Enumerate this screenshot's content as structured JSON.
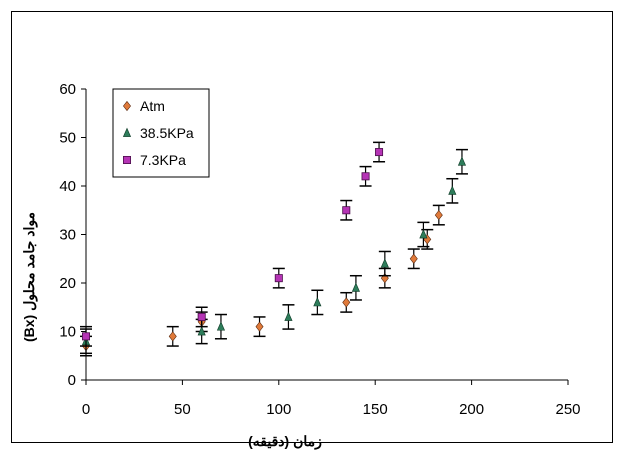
{
  "chart_data": {
    "type": "scatter",
    "xlabel": "زمان (دقیقه)",
    "ylabel": "مواد جامد محلول (Bx)",
    "xlim": [
      0,
      250
    ],
    "ylim": [
      0,
      60
    ],
    "xticks": [
      0,
      50,
      100,
      150,
      200,
      250
    ],
    "yticks": [
      0,
      10,
      20,
      30,
      40,
      50,
      60
    ],
    "grid": false,
    "legend_position": "top-left",
    "series": [
      {
        "name": "Atm",
        "marker": "diamond",
        "color": "#e07a3a",
        "x": [
          0,
          45,
          60,
          90,
          135,
          155,
          170,
          177,
          183
        ],
        "y": [
          7,
          9,
          12,
          11,
          16,
          21,
          25,
          29,
          34
        ],
        "err": [
          2,
          2,
          2,
          2,
          2,
          2,
          2,
          2,
          2
        ]
      },
      {
        "name": "38.5KPa",
        "marker": "triangle",
        "color": "#2e7d5b",
        "x": [
          0,
          60,
          70,
          105,
          120,
          140,
          155,
          175,
          190,
          195
        ],
        "y": [
          8,
          10,
          11,
          13,
          16,
          19,
          24,
          30,
          39,
          45
        ],
        "err": [
          2.5,
          2.5,
          2.5,
          2.5,
          2.5,
          2.5,
          2.5,
          2.5,
          2.5,
          2.5
        ]
      },
      {
        "name": "7.3KPa",
        "marker": "square",
        "color": "#b534b5",
        "x": [
          0,
          60,
          100,
          135,
          145,
          152
        ],
        "y": [
          9,
          13,
          21,
          35,
          42,
          47
        ],
        "err": [
          2,
          2,
          2,
          2,
          2,
          2
        ]
      }
    ]
  }
}
